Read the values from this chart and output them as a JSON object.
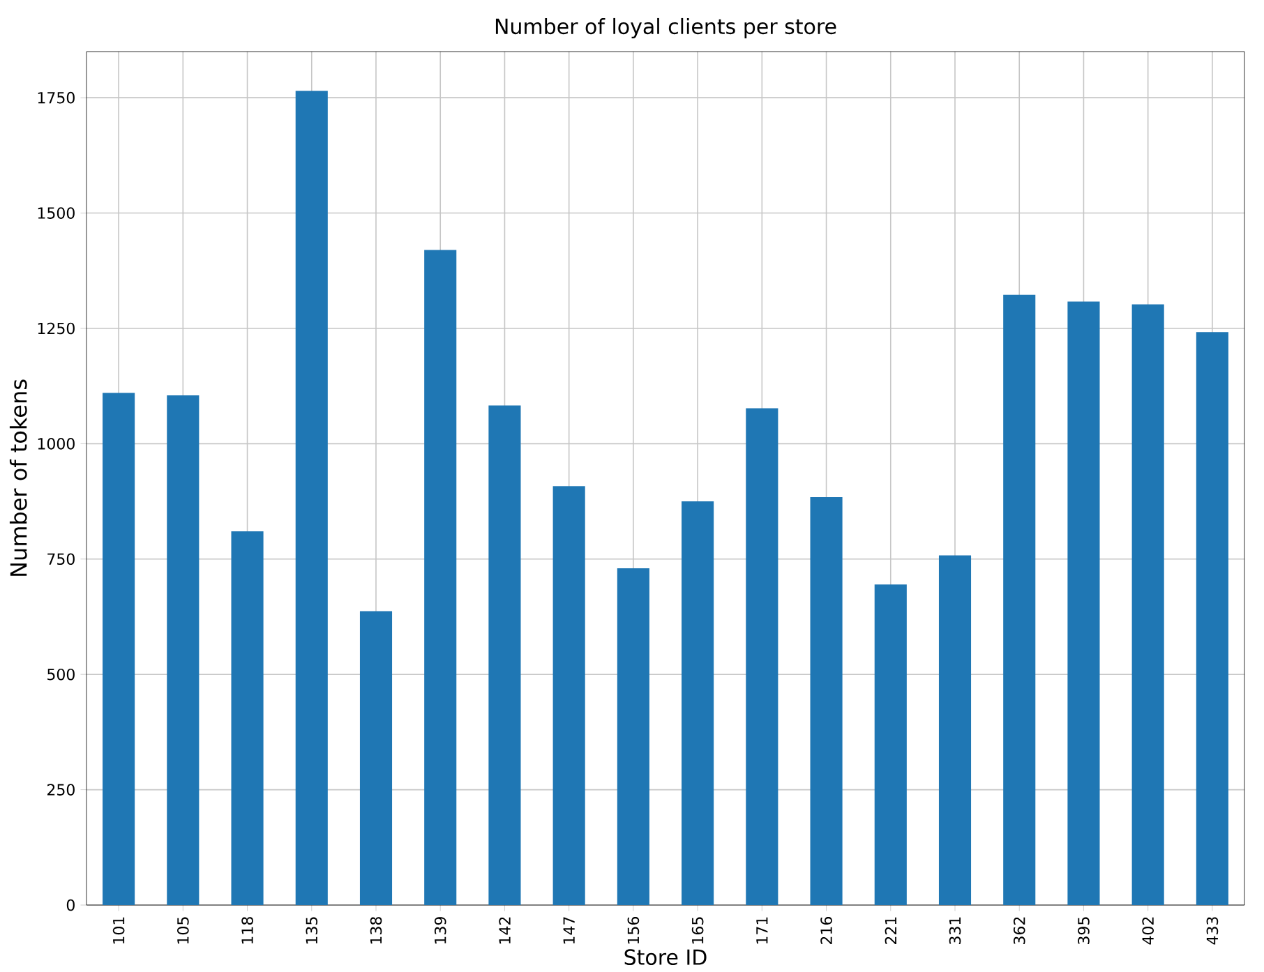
{
  "chart_data": {
    "type": "bar",
    "title": "Number of loyal clients per store",
    "xlabel": "Store ID",
    "ylabel": "Number of tokens",
    "categories": [
      "101",
      "105",
      "118",
      "135",
      "138",
      "139",
      "142",
      "147",
      "156",
      "165",
      "171",
      "216",
      "221",
      "331",
      "362",
      "395",
      "402",
      "433"
    ],
    "values": [
      1110,
      1105,
      810,
      1765,
      637,
      1420,
      1083,
      908,
      730,
      875,
      1077,
      884,
      695,
      758,
      1323,
      1308,
      1302,
      1242
    ],
    "color": "#1f77b4",
    "ylim": [
      0,
      1850
    ],
    "yticks": [
      0,
      250,
      500,
      750,
      1000,
      1250,
      1500,
      1750
    ],
    "grid": true
  }
}
